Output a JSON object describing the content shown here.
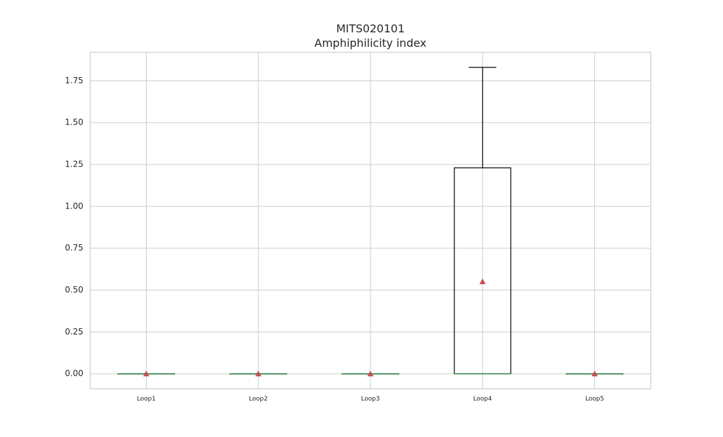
{
  "chart_data": {
    "type": "box",
    "title": "MITS020101",
    "subtitle": "Amphiphilicity index",
    "xlabel": "",
    "ylabel": "",
    "categories": [
      "Loop1",
      "Loop2",
      "Loop3",
      "Loop4",
      "Loop5"
    ],
    "ylim": [
      -0.09,
      1.92
    ],
    "yticks": [
      0.0,
      0.25,
      0.5,
      0.75,
      1.0,
      1.25,
      1.5,
      1.75
    ],
    "ytick_labels": [
      "0.00",
      "0.25",
      "0.50",
      "0.75",
      "1.00",
      "1.25",
      "1.50",
      "1.75"
    ],
    "grid": true,
    "boxes": [
      {
        "category": "Loop1",
        "whislo": 0.0,
        "q1": 0.0,
        "median": 0.0,
        "q3": 0.0,
        "whishi": 0.0,
        "mean": 0.0
      },
      {
        "category": "Loop2",
        "whislo": 0.0,
        "q1": 0.0,
        "median": 0.0,
        "q3": 0.0,
        "whishi": 0.0,
        "mean": 0.0
      },
      {
        "category": "Loop3",
        "whislo": 0.0,
        "q1": 0.0,
        "median": 0.0,
        "q3": 0.0,
        "whishi": 0.0,
        "mean": 0.0
      },
      {
        "category": "Loop4",
        "whislo": 0.0,
        "q1": 0.0,
        "median": 0.0,
        "q3": 1.23,
        "whishi": 1.83,
        "mean": 0.55
      },
      {
        "category": "Loop5",
        "whislo": 0.0,
        "q1": 0.0,
        "median": 0.0,
        "q3": 0.0,
        "whishi": 0.0,
        "mean": 0.0
      }
    ],
    "colors": {
      "box": "#000000",
      "median": "#5a9e6f",
      "mean": "#c44e52",
      "grid": "#cccccc"
    }
  }
}
